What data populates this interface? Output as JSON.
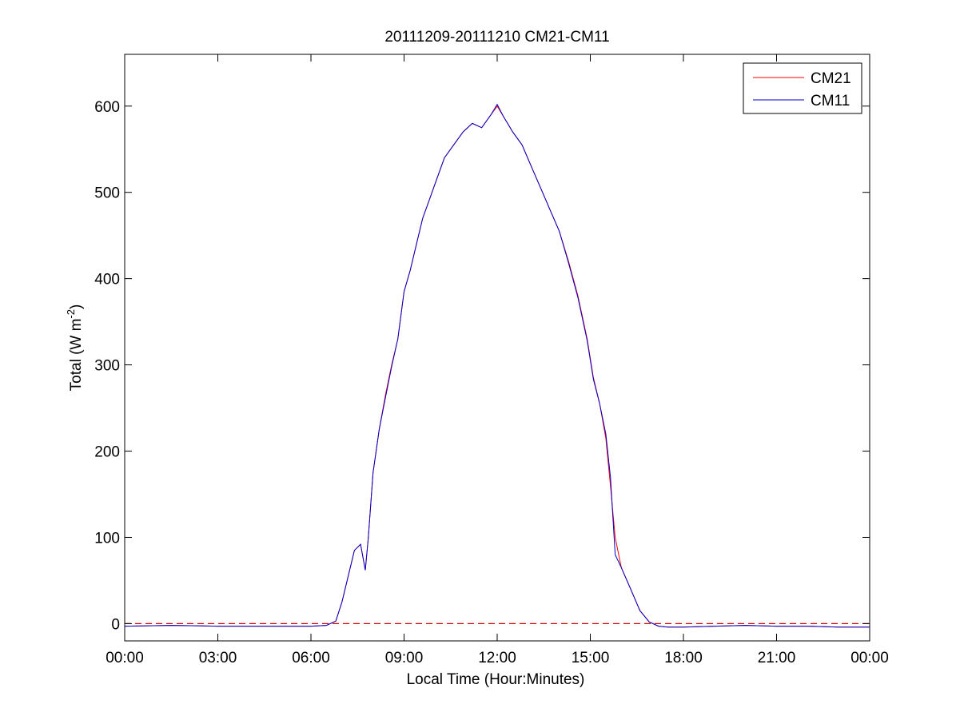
{
  "chart_data": {
    "type": "line",
    "title": "20111209-20111210 CM21-CM11",
    "xlabel": "Local Time (Hour:Minutes)",
    "ylabel": {
      "main": "Total (W m",
      "sup": "-2",
      "close": ")"
    },
    "xlim": [
      0,
      24
    ],
    "ylim": [
      -20,
      660
    ],
    "x_ticks": [
      {
        "value": 0,
        "label": "00:00"
      },
      {
        "value": 3,
        "label": "03:00"
      },
      {
        "value": 6,
        "label": "06:00"
      },
      {
        "value": 9,
        "label": "09:00"
      },
      {
        "value": 12,
        "label": "12:00"
      },
      {
        "value": 15,
        "label": "15:00"
      },
      {
        "value": 18,
        "label": "18:00"
      },
      {
        "value": 21,
        "label": "21:00"
      },
      {
        "value": 24,
        "label": "00:00"
      }
    ],
    "y_ticks": [
      {
        "value": 0,
        "label": "0"
      },
      {
        "value": 100,
        "label": "100"
      },
      {
        "value": 200,
        "label": "200"
      },
      {
        "value": 300,
        "label": "300"
      },
      {
        "value": 400,
        "label": "400"
      },
      {
        "value": 500,
        "label": "500"
      },
      {
        "value": 600,
        "label": "600"
      }
    ],
    "grid": false,
    "legend_position": "top-right",
    "reference_line": {
      "y": 0,
      "style": "dashed",
      "color": "#cc0000"
    },
    "series": [
      {
        "name": "CM21",
        "color": "#ff0000",
        "x": [
          0,
          1.5,
          3,
          4.5,
          6,
          6.5,
          6.8,
          7.0,
          7.2,
          7.4,
          7.6,
          7.75,
          7.85,
          8.0,
          8.2,
          8.4,
          8.6,
          8.8,
          9.0,
          9.2,
          9.4,
          9.6,
          9.8,
          10.0,
          10.3,
          10.6,
          10.9,
          11.2,
          11.5,
          11.8,
          12.0,
          12.2,
          12.5,
          12.8,
          13.1,
          13.4,
          13.7,
          14.0,
          14.3,
          14.6,
          14.9,
          15.1,
          15.3,
          15.5,
          15.65,
          15.8,
          16.0,
          16.3,
          16.6,
          16.9,
          17.2,
          17.5,
          18,
          19,
          20,
          21,
          22,
          23,
          24
        ],
        "y": [
          -3,
          -2,
          -3,
          -3,
          -3,
          -2,
          3,
          25,
          55,
          85,
          92,
          62,
          100,
          175,
          225,
          265,
          300,
          330,
          385,
          410,
          440,
          470,
          490,
          510,
          540,
          555,
          570,
          580,
          575,
          590,
          600,
          588,
          570,
          555,
          530,
          505,
          480,
          455,
          420,
          380,
          330,
          285,
          255,
          215,
          160,
          100,
          65,
          40,
          15,
          2,
          -3,
          -4,
          -4,
          -3,
          -2,
          -3,
          -3,
          -4,
          -4
        ]
      },
      {
        "name": "CM11",
        "color": "#0000cc",
        "x": [
          0,
          1.5,
          3,
          4.5,
          6,
          6.5,
          6.8,
          7.0,
          7.2,
          7.4,
          7.6,
          7.75,
          7.85,
          8.0,
          8.2,
          8.4,
          8.6,
          8.8,
          9.0,
          9.2,
          9.4,
          9.6,
          9.8,
          10.0,
          10.3,
          10.6,
          10.9,
          11.2,
          11.5,
          11.8,
          12.0,
          12.2,
          12.5,
          12.8,
          13.1,
          13.4,
          13.7,
          14.0,
          14.3,
          14.6,
          14.9,
          15.1,
          15.3,
          15.5,
          15.65,
          15.8,
          16.0,
          16.3,
          16.6,
          16.9,
          17.2,
          17.5,
          18,
          19,
          20,
          21,
          22,
          23,
          24
        ],
        "y": [
          -3,
          -2,
          -3,
          -3,
          -3,
          -2,
          3,
          25,
          55,
          85,
          92,
          62,
          100,
          175,
          225,
          262,
          298,
          330,
          385,
          410,
          440,
          470,
          490,
          510,
          540,
          555,
          570,
          580,
          575,
          590,
          602,
          588,
          570,
          555,
          530,
          505,
          480,
          455,
          418,
          378,
          328,
          283,
          255,
          220,
          170,
          80,
          65,
          40,
          15,
          2,
          -3,
          -4,
          -4,
          -3,
          -2,
          -3,
          -3,
          -4,
          -4
        ]
      }
    ]
  }
}
